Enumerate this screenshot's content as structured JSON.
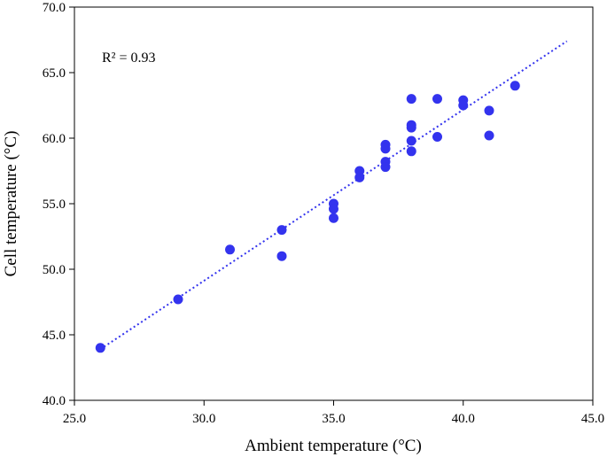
{
  "chart_data": {
    "type": "scatter",
    "xlabel": "Ambient temperature (°C)",
    "ylabel": "Cell temperature (°C)",
    "xlim": [
      25.0,
      45.0
    ],
    "ylim": [
      40.0,
      70.0
    ],
    "x_ticks": [
      "25.0",
      "30.0",
      "35.0",
      "40.0",
      "45.0"
    ],
    "y_ticks": [
      "40.0",
      "45.0",
      "50.0",
      "55.0",
      "60.0",
      "65.0",
      "70.0"
    ],
    "grid": false,
    "legend": "none",
    "point_color": "#3333ee",
    "trendline_color": "#3333ee",
    "annotation": "R² = 0.93",
    "trendline": {
      "x": [
        26,
        44
      ],
      "y": [
        43.9,
        67.4
      ]
    },
    "points": [
      {
        "x": 26,
        "y": 44.0
      },
      {
        "x": 29,
        "y": 47.7
      },
      {
        "x": 31,
        "y": 51.5
      },
      {
        "x": 33,
        "y": 53.0
      },
      {
        "x": 33,
        "y": 51.0
      },
      {
        "x": 35,
        "y": 55.0
      },
      {
        "x": 35,
        "y": 54.6
      },
      {
        "x": 35,
        "y": 53.9
      },
      {
        "x": 36,
        "y": 57.5
      },
      {
        "x": 36,
        "y": 57.0
      },
      {
        "x": 37,
        "y": 59.5
      },
      {
        "x": 37,
        "y": 59.2
      },
      {
        "x": 37,
        "y": 58.2
      },
      {
        "x": 37,
        "y": 57.8
      },
      {
        "x": 38,
        "y": 63.0
      },
      {
        "x": 38,
        "y": 61.0
      },
      {
        "x": 38,
        "y": 60.8
      },
      {
        "x": 38,
        "y": 59.8
      },
      {
        "x": 38,
        "y": 59.0
      },
      {
        "x": 39,
        "y": 63.0
      },
      {
        "x": 39,
        "y": 60.1
      },
      {
        "x": 40,
        "y": 62.9
      },
      {
        "x": 40,
        "y": 62.5
      },
      {
        "x": 41,
        "y": 62.1
      },
      {
        "x": 41,
        "y": 60.2
      },
      {
        "x": 42,
        "y": 64.0
      }
    ]
  }
}
